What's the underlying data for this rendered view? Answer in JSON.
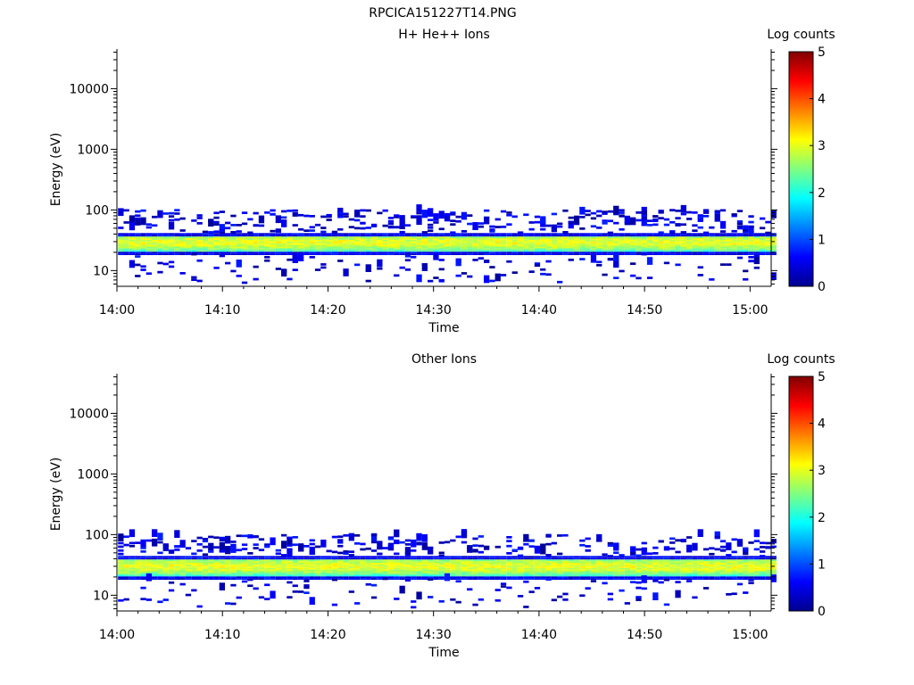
{
  "figure_title": "RPCICA151227T14.PNG",
  "chart_data": [
    {
      "type": "heatmap",
      "title": "H+ He++ Ions",
      "xlabel": "Time",
      "ylabel": "Energy (eV)",
      "x_ticks": [
        "14:00",
        "14:10",
        "14:20",
        "14:30",
        "14:40",
        "14:50",
        "15:00"
      ],
      "x_range": [
        "14:00",
        "15:02"
      ],
      "y_scale": "log",
      "y_ticks": [
        10,
        100,
        1000,
        10000
      ],
      "y_tick_labels": [
        "10",
        "100",
        "1000",
        "10000"
      ],
      "y_range": [
        5.5,
        45000
      ],
      "colorbar": {
        "label": "Log counts",
        "range": [
          0,
          5
        ],
        "ticks": [
          "0",
          "1",
          "2",
          "3",
          "4",
          "5"
        ]
      },
      "core_band_ev": [
        18,
        40
      ],
      "core_peak_ev": 28,
      "core_peak_log_counts": 3.0,
      "sparse_population_ev": [
        6,
        95
      ],
      "sparse_log_counts": [
        0.1,
        0.8
      ],
      "time_step_seconds": 32,
      "seed": 17
    },
    {
      "type": "heatmap",
      "title": "Other Ions",
      "xlabel": "Time",
      "ylabel": "Energy (eV)",
      "x_ticks": [
        "14:00",
        "14:10",
        "14:20",
        "14:30",
        "14:40",
        "14:50",
        "15:00"
      ],
      "x_range": [
        "14:00",
        "15:02"
      ],
      "y_scale": "log",
      "y_ticks": [
        10,
        100,
        1000,
        10000
      ],
      "y_tick_labels": [
        "10",
        "100",
        "1000",
        "10000"
      ],
      "y_range": [
        5.5,
        45000
      ],
      "colorbar": {
        "label": "Log counts",
        "range": [
          0,
          5
        ],
        "ticks": [
          "0",
          "1",
          "2",
          "3",
          "4",
          "5"
        ]
      },
      "core_band_ev": [
        18,
        42
      ],
      "core_peak_ev": 29,
      "core_peak_log_counts": 3.0,
      "sparse_population_ev": [
        6,
        95
      ],
      "sparse_log_counts": [
        0.1,
        0.8
      ],
      "time_step_seconds": 32,
      "seed": 43
    }
  ]
}
